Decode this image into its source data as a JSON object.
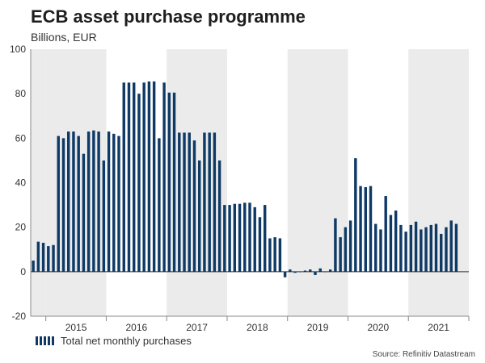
{
  "header": {
    "title": "ECB asset purchase programme",
    "subtitle": "Billions, EUR"
  },
  "footer": {
    "source": "Source: Refinitiv Datastream"
  },
  "colors": {
    "bar": "#0f3a66",
    "shade": "#ebebeb",
    "zero_line": "#333333",
    "grid": "#d9d9d9"
  },
  "chart_data": {
    "type": "bar",
    "title": "ECB asset purchase programme",
    "ylabel": "Billions, EUR",
    "xlabel": "",
    "ylim": [
      -20,
      100
    ],
    "yticks": [
      -20,
      0,
      20,
      40,
      60,
      80,
      100
    ],
    "year_labels": [
      "2015",
      "2016",
      "2017",
      "2018",
      "2019",
      "2020",
      "2021"
    ],
    "shaded_years": [
      "2015",
      "2017",
      "2019",
      "2021"
    ],
    "start": "2014-10",
    "series": [
      {
        "name": "Total net monthly purchases",
        "values": [
          5,
          13.5,
          13,
          11.5,
          12,
          61,
          60,
          63,
          63,
          61,
          53,
          63,
          63.5,
          63,
          50,
          63,
          62,
          61,
          85,
          85,
          85,
          80,
          85,
          85.5,
          85.5,
          60,
          85,
          80.5,
          80.5,
          62.5,
          62.5,
          62.5,
          59,
          50,
          62.5,
          62.5,
          62.5,
          50,
          30,
          30,
          30.5,
          30.5,
          31,
          31,
          29,
          24.5,
          30,
          15,
          15.5,
          15,
          -2.5,
          1,
          -0.5,
          0,
          0.5,
          1,
          -1.5,
          1.5,
          0,
          1,
          24,
          15.5,
          20,
          23,
          51,
          38.5,
          38,
          38.5,
          21.5,
          19,
          34,
          25.5,
          27.5,
          21,
          18,
          21,
          22.5,
          19,
          20,
          21,
          21.5,
          17,
          20,
          23,
          21.5
        ]
      }
    ],
    "legend": [
      "Total net monthly purchases"
    ],
    "legend_position": "bottom-left"
  }
}
